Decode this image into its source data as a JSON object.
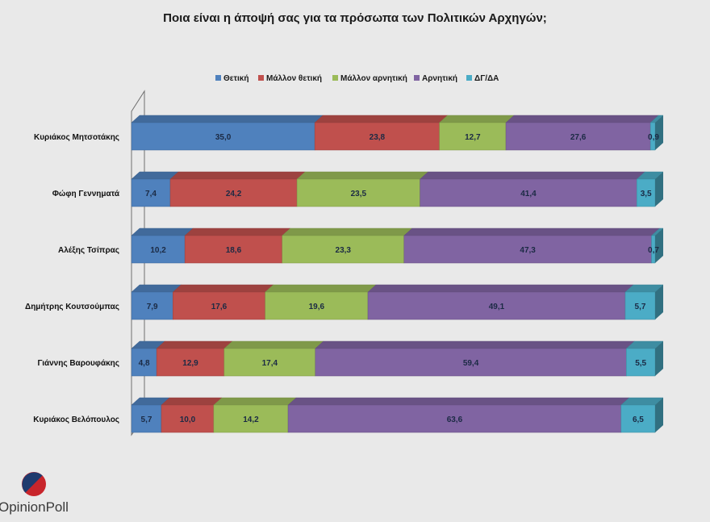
{
  "chart_data": {
    "type": "bar",
    "orientation": "horizontal",
    "stacked": true,
    "percent_stacked": true,
    "title": "Ποια είναι η άποψή σας για τα πρόσωπα των Πολιτικών Αρχηγών;",
    "legend_position": "top",
    "categories": [
      "Κυριάκος Μητσοτάκης",
      "Φώφη Γεννηματά",
      "Αλέξης Τσίπρας",
      "Δημήτρης Κουτσούμπας",
      "Γιάννης Βαρουφάκης",
      "Κυριάκος Βελόπουλος"
    ],
    "series": [
      {
        "name": "Θετική",
        "color": "#4f81bd",
        "values": [
          35.0,
          7.4,
          10.2,
          7.9,
          4.8,
          5.7
        ],
        "labels": [
          "35,0",
          "7,4",
          "10,2",
          "7,9",
          "4,8",
          "5,7"
        ]
      },
      {
        "name": "Μάλλον θετική",
        "color": "#c0504d",
        "values": [
          23.8,
          24.2,
          18.6,
          17.6,
          12.9,
          10.0
        ],
        "labels": [
          "23,8",
          "24,2",
          "18,6",
          "17,6",
          "12,9",
          "10,0"
        ]
      },
      {
        "name": "Μάλλον αρνητική",
        "color": "#9bbb59",
        "values": [
          12.7,
          23.5,
          23.3,
          19.6,
          17.4,
          14.2
        ],
        "labels": [
          "12,7",
          "23,5",
          "23,3",
          "19,6",
          "17,4",
          "14,2"
        ]
      },
      {
        "name": "Αρνητική",
        "color": "#8064a2",
        "values": [
          27.6,
          41.4,
          47.3,
          49.1,
          59.4,
          63.6
        ],
        "labels": [
          "27,6",
          "41,4",
          "47,3",
          "49,1",
          "59,4",
          "63,6"
        ]
      },
      {
        "name": "ΔΓ/ΔΑ",
        "color": "#4bacc6",
        "values": [
          0.9,
          3.5,
          0.7,
          5.7,
          5.5,
          6.5
        ],
        "labels": [
          "0,9",
          "3,5",
          "0,7",
          "5,7",
          "5,5",
          "6,5"
        ]
      }
    ],
    "grid": false
  },
  "brand": {
    "name": "OpinionPoll",
    "colors": {
      "red": "#c8252b",
      "navy": "#1f3a6e"
    }
  }
}
